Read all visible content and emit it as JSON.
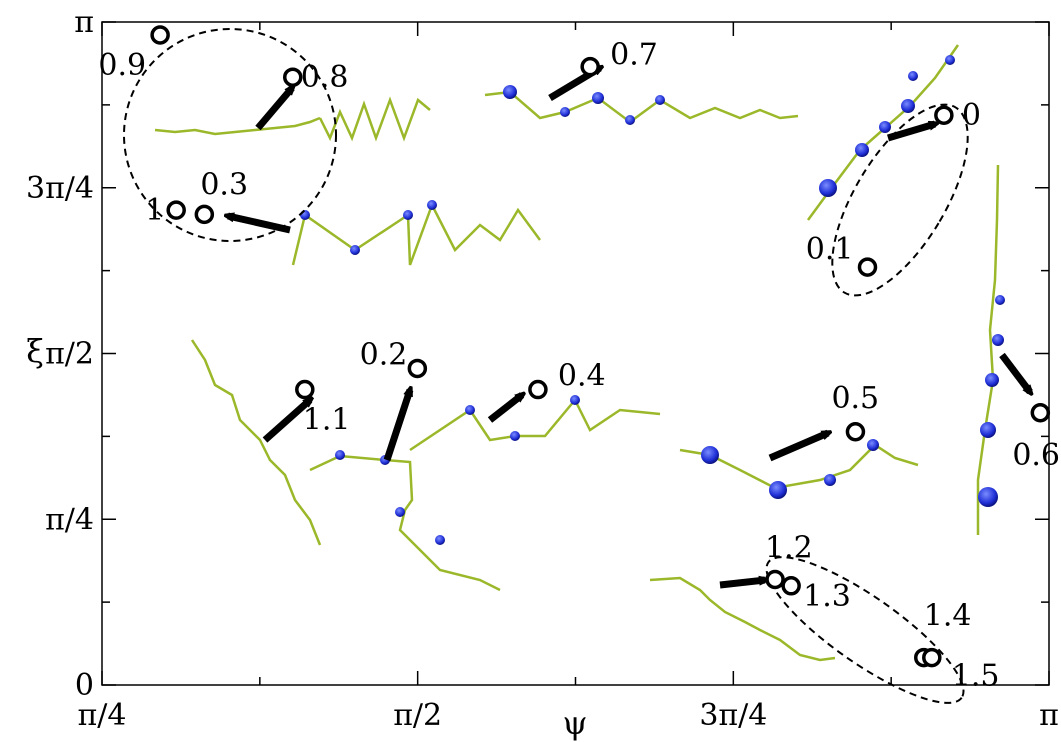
{
  "chart_data": {
    "type": "scatter",
    "title": "",
    "xlabel": "ψ",
    "ylabel": "ξ",
    "xlim": [
      0.785398,
      3.141593
    ],
    "ylim": [
      0,
      3.141593
    ],
    "x_ticks": [
      {
        "value": 0.785398,
        "label": "π/4"
      },
      {
        "value": 1.570796,
        "label": "π/2"
      },
      {
        "value": 2.356194,
        "label": "3π/4"
      },
      {
        "value": 3.141593,
        "label": "π"
      }
    ],
    "y_ticks": [
      {
        "value": 0,
        "label": "0"
      },
      {
        "value": 0.785398,
        "label": "π/4"
      },
      {
        "value": 1.570796,
        "label": "π/2"
      },
      {
        "value": 2.356194,
        "label": "3π/4"
      },
      {
        "value": 3.141593,
        "label": "π"
      }
    ],
    "points": [
      {
        "label": "0",
        "x": 2.88,
        "y": 2.7
      },
      {
        "label": "0.1",
        "x": 2.69,
        "y": 1.98
      },
      {
        "label": "0.2",
        "x": 1.57,
        "y": 1.5
      },
      {
        "label": "0.3",
        "x": 1.04,
        "y": 2.23
      },
      {
        "label": "0.4",
        "x": 1.87,
        "y": 1.4
      },
      {
        "label": "0.5",
        "x": 2.66,
        "y": 1.2
      },
      {
        "label": "0.6",
        "x": 3.12,
        "y": 1.29
      },
      {
        "label": "0.7",
        "x": 2.0,
        "y": 2.93
      },
      {
        "label": "0.8",
        "x": 1.26,
        "y": 2.88
      },
      {
        "label": "0.9",
        "x": 0.93,
        "y": 3.08
      },
      {
        "label": "1",
        "x": 0.97,
        "y": 2.25
      },
      {
        "label": "1.1",
        "x": 1.29,
        "y": 1.4
      },
      {
        "label": "1.2",
        "x": 2.46,
        "y": 0.5
      },
      {
        "label": "1.3",
        "x": 2.5,
        "y": 0.47
      },
      {
        "label": "1.4",
        "x": 2.83,
        "y": 0.13
      },
      {
        "label": "1.5",
        "x": 2.85,
        "y": 0.13
      }
    ]
  }
}
